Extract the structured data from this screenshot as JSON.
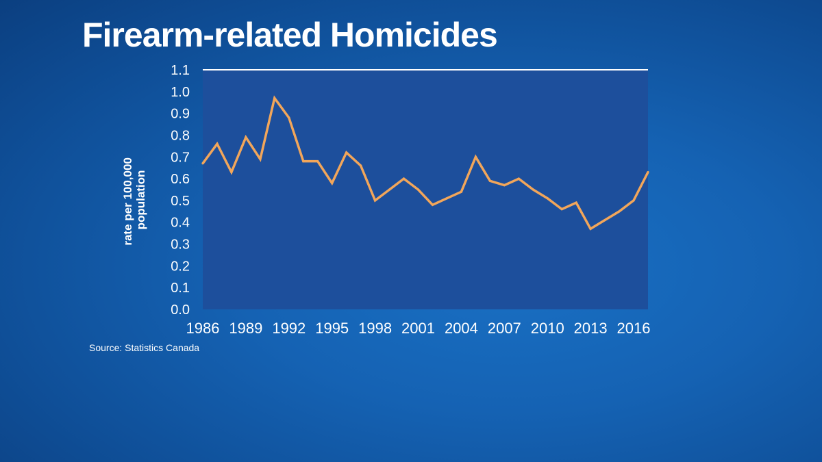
{
  "chart_data": {
    "type": "line",
    "title": "Firearm-related Homicides",
    "ylabel": "rate per 100,000 population",
    "ylabel_lines": [
      "rate per 100,000",
      "population"
    ],
    "xlabel": "",
    "source": "Source: Statistics Canada",
    "ylim": [
      0.0,
      1.1
    ],
    "y_ticks": [
      "0.0",
      "0.1",
      "0.2",
      "0.3",
      "0.4",
      "0.5",
      "0.6",
      "0.7",
      "0.8",
      "0.9",
      "1.0",
      "1.1"
    ],
    "x_tick_labels": [
      "1986",
      "1989",
      "1992",
      "1995",
      "1998",
      "2001",
      "2004",
      "2007",
      "2010",
      "2013",
      "2016"
    ],
    "x": [
      1986,
      1987,
      1988,
      1989,
      1990,
      1991,
      1992,
      1993,
      1994,
      1995,
      1996,
      1997,
      1998,
      1999,
      2000,
      2001,
      2002,
      2003,
      2004,
      2005,
      2006,
      2007,
      2008,
      2009,
      2010,
      2011,
      2012,
      2013,
      2014,
      2015,
      2016,
      2017
    ],
    "values": [
      0.67,
      0.76,
      0.63,
      0.79,
      0.69,
      0.97,
      0.88,
      0.68,
      0.68,
      0.58,
      0.72,
      0.66,
      0.5,
      0.55,
      0.6,
      0.55,
      0.48,
      0.51,
      0.54,
      0.7,
      0.59,
      0.57,
      0.6,
      0.55,
      0.51,
      0.46,
      0.49,
      0.37,
      0.41,
      0.45,
      0.5,
      0.63
    ],
    "grid": false,
    "colors": {
      "line": "#f2a65a",
      "plot_area": "#1d4f9c",
      "top_rule": "#ffffff"
    }
  }
}
